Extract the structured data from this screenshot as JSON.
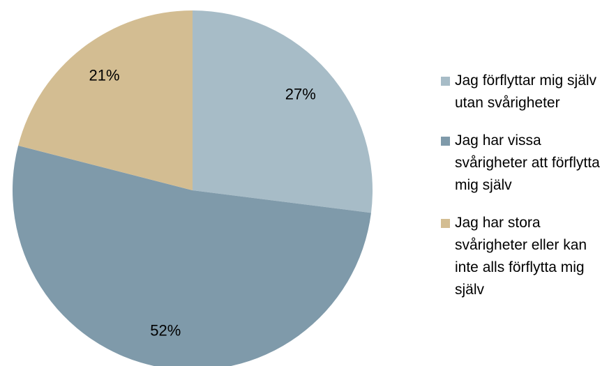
{
  "chart_data": {
    "type": "pie",
    "categories": [
      "Jag förflyttar mig själv utan svårigheter",
      "Jag har vissa svårigheter att förflytta mig själv",
      "Jag har stora svårigheter eller kan inte alls förflytta mig själv"
    ],
    "values": [
      27,
      52,
      21
    ],
    "value_labels": [
      "27%",
      "52%",
      "21%"
    ],
    "colors": [
      "#a7bcc7",
      "#7f9aaa",
      "#d3bd92"
    ],
    "legend": "right"
  }
}
